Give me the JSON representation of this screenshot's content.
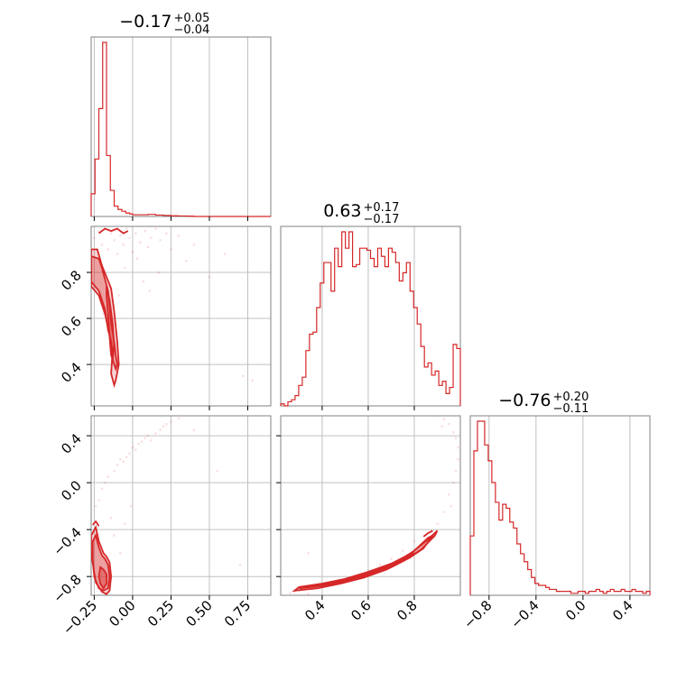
{
  "chart_data": {
    "type": "corner",
    "color": "#d62728",
    "grid": true,
    "parameters": [
      {
        "title": {
          "value": "−0.17",
          "upper": "+0.05",
          "lower": "−0.04"
        },
        "xlim": [
          -0.27,
          0.9
        ],
        "ticks": [
          -0.25,
          0.0,
          0.25,
          0.5,
          0.75
        ],
        "tick_labels": [
          "−0.25",
          "0.00",
          "0.25",
          "0.50",
          "0.75"
        ],
        "hist_edges": [
          -0.27,
          -0.245,
          -0.22,
          -0.195,
          -0.17,
          -0.145,
          -0.12,
          -0.095,
          -0.07,
          -0.045,
          -0.02,
          0.0,
          0.05,
          0.1,
          0.15,
          0.2,
          0.25,
          0.3,
          0.35,
          0.4,
          0.9
        ],
        "hist_counts": [
          0.13,
          0.33,
          0.62,
          1.0,
          0.35,
          0.15,
          0.06,
          0.04,
          0.03,
          0.02,
          0.015,
          0.01,
          0.01,
          0.012,
          0.008,
          0.006,
          0.004,
          0.003,
          0.002,
          0.0
        ]
      },
      {
        "title": {
          "value": "0.63",
          "upper": "+0.17",
          "lower": "−0.17"
        },
        "xlim": [
          0.22,
          1.0
        ],
        "ticks": [
          0.4,
          0.6,
          0.8
        ],
        "tick_labels": [
          "0.4",
          "0.6",
          "0.8"
        ],
        "hist_counts": [
          0.01,
          0.0,
          0.02,
          0.03,
          0.05,
          0.1,
          0.14,
          0.27,
          0.35,
          0.36,
          0.48,
          0.6,
          0.7,
          0.7,
          0.56,
          0.77,
          0.68,
          0.85,
          0.77,
          0.85,
          0.68,
          0.69,
          0.77,
          0.77,
          0.76,
          0.72,
          0.68,
          0.77,
          0.73,
          0.68,
          0.77,
          0.75,
          0.7,
          0.61,
          0.65,
          0.7,
          0.56,
          0.48,
          0.4,
          0.29,
          0.19,
          0.21,
          0.15,
          0.17,
          0.1,
          0.12,
          0.06,
          0.09,
          0.3,
          0.28
        ]
      },
      {
        "title": {
          "value": "−0.76",
          "upper": "+0.20",
          "lower": "−0.11"
        },
        "xlim": [
          -0.96,
          0.57
        ],
        "ticks": [
          -0.8,
          -0.4,
          0.0,
          0.4
        ],
        "tick_labels": [
          "−0.8",
          "−0.4",
          "0.0",
          "0.4"
        ],
        "hist_counts": [
          0.3,
          0.73,
          0.88,
          0.88,
          0.76,
          0.68,
          0.57,
          0.47,
          0.38,
          0.46,
          0.44,
          0.37,
          0.34,
          0.26,
          0.21,
          0.17,
          0.13,
          0.09,
          0.06,
          0.05,
          0.05,
          0.04,
          0.03,
          0.03,
          0.02,
          0.02,
          0.02,
          0.02,
          0.01,
          0.01,
          0.02,
          0.02,
          0.01,
          0.02,
          0.02,
          0.03,
          0.02,
          0.01,
          0.02,
          0.03,
          0.02,
          0.02,
          0.03,
          0.02,
          0.02,
          0.03,
          0.02,
          0.02,
          0.01,
          0.02
        ]
      }
    ],
    "panels_2d": [
      {
        "x_param": 0,
        "y_param": 1,
        "contour_fill_x": [
          -0.27,
          -0.22,
          -0.2,
          -0.18,
          -0.16,
          -0.15,
          -0.14,
          -0.12,
          -0.11,
          -0.1,
          -0.11,
          -0.13,
          -0.14,
          -0.16,
          -0.18,
          -0.22,
          -0.27
        ],
        "contour_fill_y": [
          0.87,
          0.86,
          0.82,
          0.77,
          0.72,
          0.66,
          0.58,
          0.5,
          0.44,
          0.4,
          0.38,
          0.42,
          0.5,
          0.55,
          0.64,
          0.72,
          0.76
        ],
        "contour_outer_x": [
          -0.27,
          -0.23,
          -0.2,
          -0.17,
          -0.14,
          -0.12,
          -0.1,
          -0.09,
          -0.11,
          -0.12,
          -0.14,
          -0.13,
          -0.16,
          -0.18,
          -0.22,
          -0.27
        ],
        "contour_outer_y": [
          0.9,
          0.9,
          0.83,
          0.78,
          0.73,
          0.63,
          0.5,
          0.4,
          0.33,
          0.31,
          0.36,
          0.46,
          0.56,
          0.62,
          0.7,
          0.74
        ],
        "contour_inner_x": [
          -0.17,
          -0.15,
          -0.13,
          -0.12,
          -0.13,
          -0.14,
          -0.15,
          -0.16,
          -0.17
        ],
        "contour_inner_y": [
          0.74,
          0.68,
          0.58,
          0.48,
          0.42,
          0.44,
          0.52,
          0.62,
          0.7
        ],
        "contour_top_x": [
          -0.22,
          -0.18,
          -0.14,
          -0.1,
          -0.06,
          -0.03
        ],
        "contour_top_y": [
          0.97,
          0.99,
          0.98,
          0.99,
          0.97,
          0.98
        ],
        "scatter_x": [
          -0.25,
          -0.22,
          -0.2,
          -0.18,
          -0.16,
          -0.14,
          -0.12,
          -0.1,
          -0.08,
          -0.06,
          -0.04,
          -0.02,
          0.0,
          0.02,
          0.05,
          0.08,
          0.1,
          0.12,
          0.15,
          0.18,
          0.22,
          0.25,
          0.3,
          0.35,
          0.4,
          0.5,
          0.6,
          0.72,
          0.78,
          -0.19,
          -0.15,
          -0.09,
          -0.05,
          0.03,
          0.07,
          0.11,
          0.17
        ],
        "scatter_y": [
          0.95,
          0.98,
          0.92,
          0.99,
          0.9,
          0.97,
          0.94,
          0.88,
          0.96,
          0.92,
          0.99,
          0.95,
          0.89,
          0.97,
          0.93,
          0.98,
          0.91,
          0.95,
          0.99,
          0.94,
          0.97,
          0.9,
          0.96,
          0.85,
          0.92,
          0.78,
          0.88,
          0.35,
          0.33,
          0.62,
          0.48,
          0.7,
          0.82,
          0.86,
          0.76,
          0.72,
          0.8
        ]
      },
      {
        "x_param": 0,
        "y_param": 2,
        "contour_fill_x": [
          -0.26,
          -0.24,
          -0.22,
          -0.2,
          -0.18,
          -0.16,
          -0.15,
          -0.16,
          -0.19,
          -0.22,
          -0.25,
          -0.26
        ],
        "contour_fill_y": [
          -0.5,
          -0.45,
          -0.55,
          -0.62,
          -0.65,
          -0.7,
          -0.8,
          -0.9,
          -0.92,
          -0.9,
          -0.8,
          -0.65
        ],
        "contour_outer_x": [
          -0.27,
          -0.24,
          -0.22,
          -0.19,
          -0.17,
          -0.15,
          -0.14,
          -0.15,
          -0.17,
          -0.2,
          -0.24,
          -0.27
        ],
        "contour_outer_y": [
          -0.45,
          -0.38,
          -0.5,
          -0.6,
          -0.63,
          -0.68,
          -0.8,
          -0.92,
          -0.95,
          -0.93,
          -0.85,
          -0.6
        ],
        "contour_inner_x": [
          -0.21,
          -0.19,
          -0.17,
          -0.17,
          -0.19,
          -0.21,
          -0.22
        ],
        "contour_inner_y": [
          -0.72,
          -0.74,
          -0.78,
          -0.86,
          -0.9,
          -0.86,
          -0.8
        ],
        "contour_top_x": [
          -0.26,
          -0.24,
          -0.22
        ],
        "contour_top_y": [
          -0.36,
          -0.33,
          -0.37
        ],
        "scatter_x": [
          -0.24,
          -0.22,
          -0.2,
          -0.18,
          -0.16,
          -0.14,
          -0.12,
          -0.1,
          -0.08,
          -0.06,
          -0.04,
          -0.02,
          0.0,
          0.02,
          0.04,
          0.06,
          0.08,
          0.1,
          0.12,
          0.15,
          0.18,
          0.2,
          0.22,
          0.25,
          0.3,
          0.4,
          0.55,
          0.7,
          -0.12,
          -0.08,
          -0.05,
          -0.01
        ],
        "scatter_y": [
          -0.2,
          -0.15,
          -0.05,
          0.0,
          0.05,
          -0.3,
          0.1,
          0.15,
          0.2,
          0.18,
          0.22,
          0.25,
          0.3,
          0.28,
          0.33,
          0.35,
          0.38,
          0.4,
          0.36,
          0.42,
          0.45,
          0.48,
          0.5,
          0.52,
          0.55,
          0.45,
          0.1,
          -0.7,
          -0.45,
          -0.6,
          -0.35,
          -0.2
        ]
      },
      {
        "x_param": 1,
        "y_param": 2,
        "contour_fill_x": [
          0.3,
          0.4,
          0.5,
          0.6,
          0.7,
          0.78,
          0.84,
          0.88,
          0.86,
          0.8,
          0.72,
          0.62,
          0.52,
          0.42,
          0.33
        ],
        "contour_fill_y": [
          -0.9,
          -0.88,
          -0.84,
          -0.79,
          -0.72,
          -0.64,
          -0.56,
          -0.45,
          -0.47,
          -0.58,
          -0.68,
          -0.76,
          -0.82,
          -0.86,
          -0.89
        ],
        "contour_outer_x": [
          0.28,
          0.38,
          0.48,
          0.58,
          0.68,
          0.76,
          0.83,
          0.89,
          0.9,
          0.85,
          0.78,
          0.7,
          0.6,
          0.5,
          0.4,
          0.3
        ],
        "contour_outer_y": [
          -0.92,
          -0.9,
          -0.86,
          -0.81,
          -0.74,
          -0.66,
          -0.57,
          -0.45,
          -0.41,
          -0.5,
          -0.61,
          -0.69,
          -0.76,
          -0.82,
          -0.86,
          -0.89
        ],
        "contour_inner_x": [
          0.45,
          0.55,
          0.65,
          0.74,
          0.8,
          0.78,
          0.7,
          0.6,
          0.5
        ],
        "contour_inner_y": [
          -0.86,
          -0.81,
          -0.75,
          -0.67,
          -0.6,
          -0.62,
          -0.7,
          -0.77,
          -0.83
        ],
        "contour_top_x": [
          0.84,
          0.86,
          0.88
        ],
        "contour_top_y": [
          -0.46,
          -0.43,
          -0.41
        ],
        "scatter_x": [
          0.26,
          0.28,
          0.3,
          0.34,
          0.4,
          0.45,
          0.5,
          0.55,
          0.6,
          0.65,
          0.7,
          0.75,
          0.8,
          0.85,
          0.9,
          0.93,
          0.95,
          0.97,
          0.98,
          0.99,
          0.99,
          0.98,
          0.97,
          0.95,
          0.93,
          0.9,
          0.88,
          0.85,
          0.82,
          0.34,
          0.96,
          0.92
        ],
        "scatter_y": [
          -0.94,
          -0.93,
          -0.92,
          -0.6,
          -0.88,
          -0.86,
          -0.83,
          -0.79,
          -0.75,
          -0.7,
          -0.65,
          -0.58,
          -0.5,
          -0.45,
          -0.35,
          -0.25,
          -0.1,
          0.0,
          0.1,
          0.2,
          0.3,
          0.38,
          0.43,
          0.5,
          0.54,
          0.57,
          0.6,
          0.62,
          0.6,
          -0.95,
          -0.2,
          0.48
        ]
      }
    ]
  }
}
